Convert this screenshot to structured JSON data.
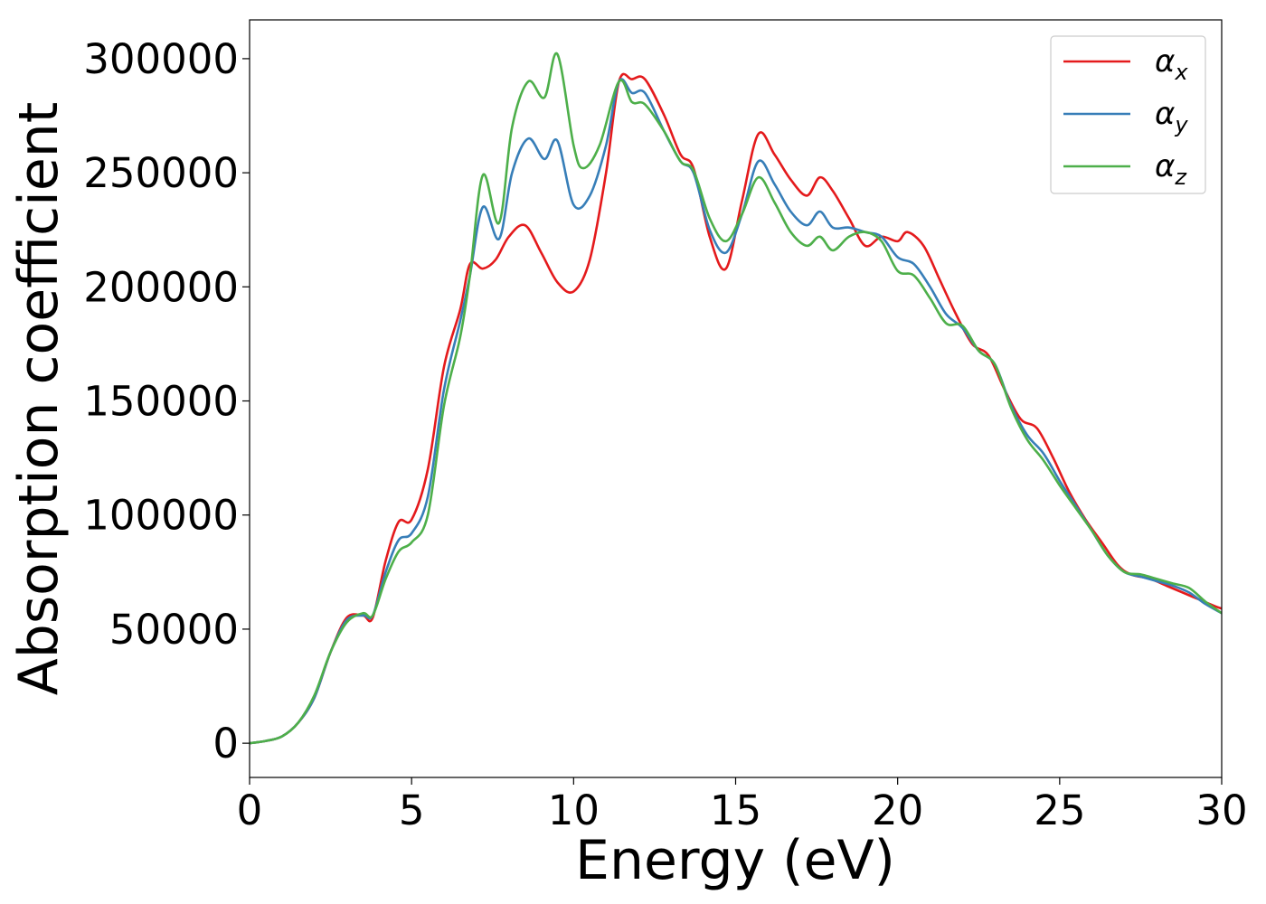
{
  "chart_data": {
    "type": "line",
    "title": "",
    "xlabel": "Energy (eV)",
    "ylabel": "Absorption coefficient",
    "xlim": [
      0,
      30
    ],
    "ylim": [
      -15000,
      317000
    ],
    "xticks": [
      0,
      5,
      10,
      15,
      20,
      25,
      30
    ],
    "yticks": [
      0,
      50000,
      100000,
      150000,
      200000,
      250000,
      300000
    ],
    "grid": false,
    "legend_position": "top-right",
    "series": [
      {
        "name": "x",
        "color": "#e41a1c",
        "points": [
          [
            0,
            0
          ],
          [
            0.5,
            1000
          ],
          [
            1,
            3000
          ],
          [
            1.5,
            9000
          ],
          [
            2,
            20000
          ],
          [
            2.5,
            40000
          ],
          [
            3,
            55000
          ],
          [
            3.5,
            56000
          ],
          [
            3.8,
            55000
          ],
          [
            4.2,
            80000
          ],
          [
            4.6,
            97000
          ],
          [
            5,
            98000
          ],
          [
            5.5,
            120000
          ],
          [
            6,
            165000
          ],
          [
            6.5,
            190000
          ],
          [
            6.8,
            210000
          ],
          [
            7.2,
            208000
          ],
          [
            7.6,
            212000
          ],
          [
            8,
            222000
          ],
          [
            8.5,
            227000
          ],
          [
            9,
            215000
          ],
          [
            9.5,
            202000
          ],
          [
            10,
            198000
          ],
          [
            10.5,
            212000
          ],
          [
            11,
            250000
          ],
          [
            11.4,
            290000
          ],
          [
            11.8,
            291000
          ],
          [
            12.2,
            291000
          ],
          [
            12.8,
            275000
          ],
          [
            13.3,
            258000
          ],
          [
            13.7,
            252000
          ],
          [
            14.2,
            222000
          ],
          [
            14.7,
            208000
          ],
          [
            15.2,
            238000
          ],
          [
            15.7,
            267000
          ],
          [
            16.2,
            258000
          ],
          [
            16.7,
            247000
          ],
          [
            17.2,
            240000
          ],
          [
            17.6,
            248000
          ],
          [
            18,
            242000
          ],
          [
            18.5,
            230000
          ],
          [
            19,
            218000
          ],
          [
            19.5,
            222000
          ],
          [
            20,
            220000
          ],
          [
            20.3,
            224000
          ],
          [
            20.8,
            218000
          ],
          [
            21.3,
            203000
          ],
          [
            21.8,
            188000
          ],
          [
            22.3,
            175000
          ],
          [
            22.8,
            170000
          ],
          [
            23.3,
            155000
          ],
          [
            23.8,
            142000
          ],
          [
            24.3,
            138000
          ],
          [
            24.8,
            125000
          ],
          [
            25.3,
            110000
          ],
          [
            25.8,
            98000
          ],
          [
            26.3,
            88000
          ],
          [
            26.8,
            78000
          ],
          [
            27.2,
            74000
          ],
          [
            27.8,
            72000
          ],
          [
            28.3,
            69000
          ],
          [
            28.8,
            66000
          ],
          [
            29.3,
            63000
          ],
          [
            29.8,
            60000
          ],
          [
            30,
            59000
          ]
        ]
      },
      {
        "name": "y",
        "color": "#377eb8",
        "points": [
          [
            0,
            0
          ],
          [
            0.5,
            1000
          ],
          [
            1,
            3000
          ],
          [
            1.5,
            9000
          ],
          [
            2,
            20000
          ],
          [
            2.5,
            40000
          ],
          [
            3,
            54000
          ],
          [
            3.5,
            56000
          ],
          [
            3.8,
            56000
          ],
          [
            4.2,
            75000
          ],
          [
            4.6,
            89000
          ],
          [
            5,
            92000
          ],
          [
            5.5,
            108000
          ],
          [
            6,
            155000
          ],
          [
            6.5,
            185000
          ],
          [
            6.8,
            205000
          ],
          [
            7.2,
            235000
          ],
          [
            7.7,
            221000
          ],
          [
            8.1,
            250000
          ],
          [
            8.6,
            265000
          ],
          [
            9.1,
            256000
          ],
          [
            9.5,
            264000
          ],
          [
            10,
            236000
          ],
          [
            10.5,
            240000
          ],
          [
            11,
            262000
          ],
          [
            11.4,
            290000
          ],
          [
            11.8,
            285000
          ],
          [
            12.2,
            285000
          ],
          [
            12.8,
            268000
          ],
          [
            13.3,
            255000
          ],
          [
            13.7,
            250000
          ],
          [
            14.2,
            225000
          ],
          [
            14.7,
            215000
          ],
          [
            15.2,
            232000
          ],
          [
            15.7,
            255000
          ],
          [
            16.2,
            245000
          ],
          [
            16.7,
            233000
          ],
          [
            17.2,
            227000
          ],
          [
            17.6,
            233000
          ],
          [
            18,
            226000
          ],
          [
            18.5,
            226000
          ],
          [
            19,
            224000
          ],
          [
            19.5,
            222000
          ],
          [
            20,
            213000
          ],
          [
            20.5,
            210000
          ],
          [
            21,
            200000
          ],
          [
            21.5,
            188000
          ],
          [
            22,
            182000
          ],
          [
            22.5,
            172000
          ],
          [
            23,
            166000
          ],
          [
            23.5,
            148000
          ],
          [
            24,
            135000
          ],
          [
            24.5,
            127000
          ],
          [
            25,
            115000
          ],
          [
            25.5,
            104000
          ],
          [
            26,
            93000
          ],
          [
            26.5,
            82000
          ],
          [
            27,
            75000
          ],
          [
            27.5,
            73000
          ],
          [
            28,
            71000
          ],
          [
            28.5,
            69000
          ],
          [
            29,
            66000
          ],
          [
            29.5,
            61000
          ],
          [
            30,
            57000
          ]
        ]
      },
      {
        "name": "z",
        "color": "#4daf4a",
        "points": [
          [
            0,
            0
          ],
          [
            0.5,
            1000
          ],
          [
            1,
            3000
          ],
          [
            1.5,
            9000
          ],
          [
            2,
            21000
          ],
          [
            2.5,
            40000
          ],
          [
            3,
            53000
          ],
          [
            3.5,
            57000
          ],
          [
            3.8,
            56000
          ],
          [
            4.2,
            72000
          ],
          [
            4.6,
            84000
          ],
          [
            5,
            88000
          ],
          [
            5.5,
            100000
          ],
          [
            6,
            148000
          ],
          [
            6.5,
            178000
          ],
          [
            6.8,
            205000
          ],
          [
            7.2,
            249000
          ],
          [
            7.7,
            228000
          ],
          [
            8.1,
            270000
          ],
          [
            8.6,
            290000
          ],
          [
            9.1,
            283000
          ],
          [
            9.5,
            302000
          ],
          [
            10,
            262000
          ],
          [
            10.3,
            252000
          ],
          [
            10.8,
            262000
          ],
          [
            11.4,
            290000
          ],
          [
            11.8,
            281000
          ],
          [
            12.2,
            280000
          ],
          [
            12.8,
            268000
          ],
          [
            13.3,
            255000
          ],
          [
            13.7,
            251000
          ],
          [
            14.2,
            230000
          ],
          [
            14.7,
            220000
          ],
          [
            15.2,
            232000
          ],
          [
            15.7,
            248000
          ],
          [
            16.2,
            237000
          ],
          [
            16.7,
            224000
          ],
          [
            17.2,
            218000
          ],
          [
            17.6,
            222000
          ],
          [
            18,
            216000
          ],
          [
            18.5,
            222000
          ],
          [
            19,
            224000
          ],
          [
            19.5,
            220000
          ],
          [
            20,
            207000
          ],
          [
            20.5,
            205000
          ],
          [
            21,
            195000
          ],
          [
            21.5,
            184000
          ],
          [
            22,
            183000
          ],
          [
            22.5,
            172000
          ],
          [
            23,
            166000
          ],
          [
            23.5,
            147000
          ],
          [
            24,
            133000
          ],
          [
            24.5,
            124000
          ],
          [
            25,
            113000
          ],
          [
            25.5,
            103000
          ],
          [
            26,
            93000
          ],
          [
            26.5,
            82000
          ],
          [
            27,
            75000
          ],
          [
            27.5,
            74000
          ],
          [
            28,
            72000
          ],
          [
            28.5,
            70000
          ],
          [
            29,
            68000
          ],
          [
            29.5,
            62000
          ],
          [
            30,
            57000
          ]
        ]
      }
    ]
  }
}
